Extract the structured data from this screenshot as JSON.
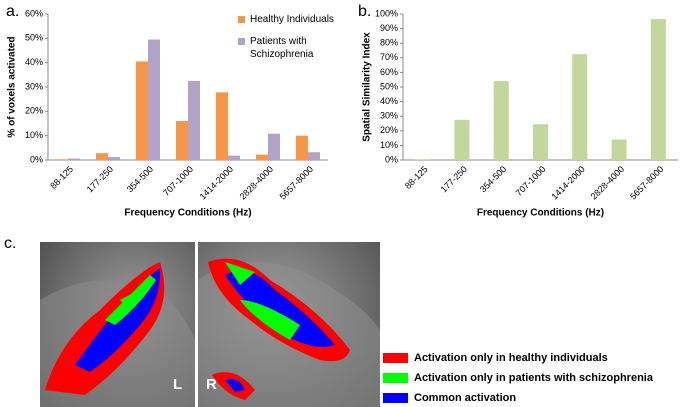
{
  "chart_data": [
    {
      "type": "bar",
      "x_label": "Frequency Conditions (Hz)",
      "y_label": "% of voxels activated",
      "categories": [
        "88-125",
        "177-250",
        "354-500",
        "707-1000",
        "1414-2000",
        "2828-4000",
        "5657-8000"
      ],
      "series": [
        {
          "name": "Healthy Individuals",
          "color": "#f79646",
          "values": [
            0.3,
            2.8,
            40.5,
            16,
            27.8,
            2.2,
            10
          ]
        },
        {
          "name": "Patients with Schizophrenia",
          "color": "#b3a2c7",
          "values": [
            0.6,
            1.2,
            49.5,
            32.5,
            1.8,
            10.8,
            3.2
          ]
        }
      ],
      "ylim": [
        0,
        60
      ],
      "yticks": [
        {
          "value": 0,
          "label": "0%"
        },
        {
          "value": 10,
          "label": "10%"
        },
        {
          "value": 20,
          "label": "20%"
        },
        {
          "value": 30,
          "label": "30%"
        },
        {
          "value": 40,
          "label": "40%"
        },
        {
          "value": 50,
          "label": "50%"
        },
        {
          "value": 60,
          "label": "60%"
        }
      ],
      "legend": "top-right"
    },
    {
      "type": "bar",
      "x_label": "Frequency Conditions (Hz)",
      "y_label": "Spatial Similarity Index",
      "categories": [
        "88-125",
        "177-250",
        "354-500",
        "707-1000",
        "1414-2000",
        "2828-4000",
        "5657-8000"
      ],
      "series": [
        {
          "color": "#c3d69b",
          "values": [
            0.5,
            27.5,
            54,
            24.5,
            72.5,
            14,
            96.5
          ]
        }
      ],
      "ylim": [
        0,
        100
      ],
      "yticks": [
        {
          "value": 0,
          "label": "0%"
        },
        {
          "value": 10,
          "label": "10%"
        },
        {
          "value": 20,
          "label": "20%"
        },
        {
          "value": 30,
          "label": "30%"
        },
        {
          "value": 40,
          "label": "40%"
        },
        {
          "value": 50,
          "label": "50%"
        },
        {
          "value": 60,
          "label": "60%"
        },
        {
          "value": 70,
          "label": "70%"
        },
        {
          "value": 80,
          "label": "80%"
        },
        {
          "value": 90,
          "label": "90%"
        },
        {
          "value": 100,
          "label": "100%"
        }
      ]
    }
  ],
  "panel_labels": [
    "a.",
    "b.",
    "c."
  ],
  "hemisphere_labels": [
    "L",
    "R"
  ],
  "brain_legend": [
    {
      "label": "Activation only in healthy individuals",
      "color": "#ff0000"
    },
    {
      "label": "Activation only in patients with schizophrenia",
      "color": "#00ff00"
    },
    {
      "label": "Common activation",
      "color": "#0000ff"
    }
  ]
}
